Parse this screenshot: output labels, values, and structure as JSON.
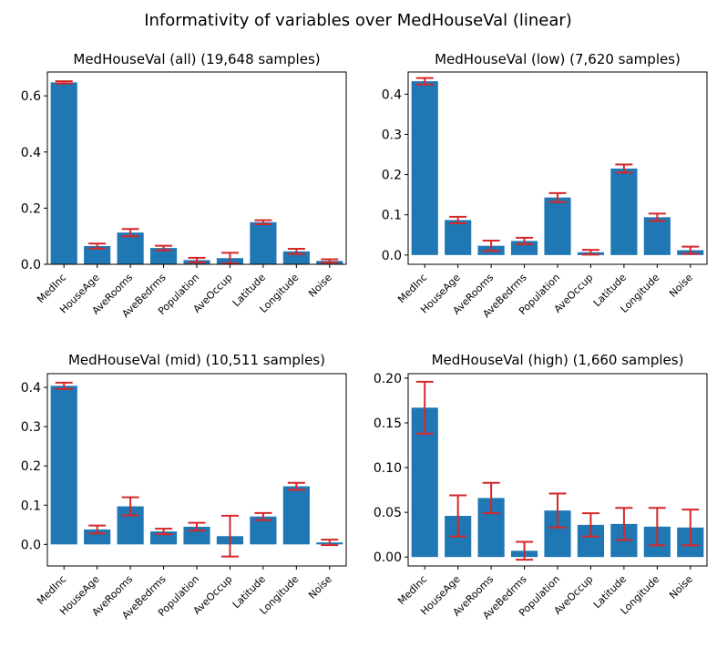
{
  "figure": {
    "suptitle": "Informativity of variables over MedHouseVal (linear)"
  },
  "chart_data": [
    {
      "type": "bar",
      "title": "MedHouseVal (all) (19,648 samples)",
      "categories": [
        "MedInc",
        "HouseAge",
        "AveRooms",
        "AveBedrms",
        "Population",
        "AveOccup",
        "Latitude",
        "Longitude",
        "Noise"
      ],
      "values": [
        0.648,
        0.065,
        0.113,
        0.058,
        0.015,
        0.022,
        0.15,
        0.046,
        0.012
      ],
      "errors": [
        0.004,
        0.009,
        0.013,
        0.008,
        0.008,
        0.019,
        0.007,
        0.009,
        0.006
      ],
      "ylim": [
        0,
        0.685
      ],
      "yticks": [
        0.0,
        0.2,
        0.4,
        0.6
      ],
      "yticklabels": [
        "0.0",
        "0.2",
        "0.4",
        "0.6"
      ],
      "bar_color": "#1f77b4",
      "error_color": "#d62728"
    },
    {
      "type": "bar",
      "title": "MedHouseVal (low) (7,620 samples)",
      "categories": [
        "MedInc",
        "HouseAge",
        "AveRooms",
        "AveBedrms",
        "Population",
        "AveOccup",
        "Latitude",
        "Longitude",
        "Noise"
      ],
      "values": [
        0.432,
        0.087,
        0.023,
        0.035,
        0.143,
        0.007,
        0.215,
        0.094,
        0.012
      ],
      "errors": [
        0.008,
        0.008,
        0.013,
        0.008,
        0.011,
        0.006,
        0.01,
        0.009,
        0.009
      ],
      "ylim": [
        -0.023,
        0.455
      ],
      "yticks": [
        0.0,
        0.1,
        0.2,
        0.3,
        0.4
      ],
      "yticklabels": [
        "0.0",
        "0.1",
        "0.2",
        "0.3",
        "0.4"
      ],
      "bar_color": "#1f77b4",
      "error_color": "#d62728"
    },
    {
      "type": "bar",
      "title": "MedHouseVal (mid) (10,511 samples)",
      "categories": [
        "MedInc",
        "HouseAge",
        "AveRooms",
        "AveBedrms",
        "Population",
        "AveOccup",
        "Latitude",
        "Longitude",
        "Noise"
      ],
      "values": [
        0.404,
        0.038,
        0.097,
        0.033,
        0.045,
        0.021,
        0.071,
        0.148,
        0.005
      ],
      "errors": [
        0.008,
        0.01,
        0.023,
        0.007,
        0.01,
        0.052,
        0.009,
        0.009,
        0.007
      ],
      "ylim": [
        -0.055,
        0.435
      ],
      "yticks": [
        0.0,
        0.1,
        0.2,
        0.3,
        0.4
      ],
      "yticklabels": [
        "0.0",
        "0.1",
        "0.2",
        "0.3",
        "0.4"
      ],
      "bar_color": "#1f77b4",
      "error_color": "#d62728"
    },
    {
      "type": "bar",
      "title": "MedHouseVal (high) (1,660 samples)",
      "categories": [
        "MedInc",
        "HouseAge",
        "AveRooms",
        "AveBedrms",
        "Population",
        "AveOccup",
        "Latitude",
        "Longitude",
        "Noise"
      ],
      "values": [
        0.167,
        0.046,
        0.066,
        0.007,
        0.052,
        0.036,
        0.037,
        0.034,
        0.033
      ],
      "errors": [
        0.029,
        0.023,
        0.017,
        0.01,
        0.019,
        0.013,
        0.018,
        0.021,
        0.02
      ],
      "ylim": [
        -0.01,
        0.205
      ],
      "yticks": [
        0.0,
        0.05,
        0.1,
        0.15,
        0.2
      ],
      "yticklabels": [
        "0.00",
        "0.05",
        "0.10",
        "0.15",
        "0.20"
      ],
      "bar_color": "#1f77b4",
      "error_color": "#d62728"
    }
  ]
}
